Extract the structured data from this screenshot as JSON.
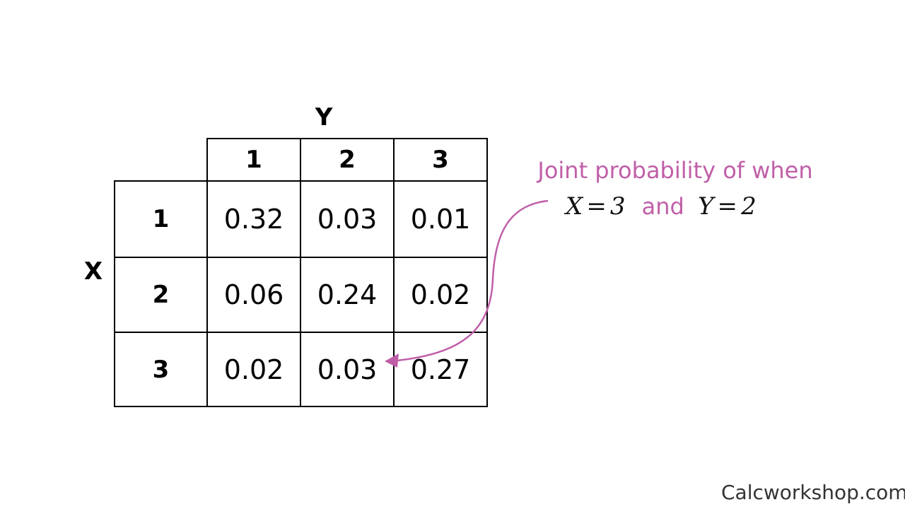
{
  "axes": {
    "y_label": "Y",
    "x_label": "X"
  },
  "columns": [
    "1",
    "2",
    "3"
  ],
  "rows": [
    {
      "label": "1",
      "values": [
        "0.32",
        "0.03",
        "0.01"
      ]
    },
    {
      "label": "2",
      "values": [
        "0.06",
        "0.24",
        "0.02"
      ]
    },
    {
      "label": "3",
      "values": [
        "0.02",
        "0.03",
        "0.27"
      ]
    }
  ],
  "callout": {
    "line1": "Joint probability of when",
    "x_var": "X",
    "x_val": "3",
    "and": "and",
    "y_var": "Y",
    "y_val": "2",
    "equals": "=",
    "color": "#c05fa8"
  },
  "watermark": "Calcworkshop.com"
}
